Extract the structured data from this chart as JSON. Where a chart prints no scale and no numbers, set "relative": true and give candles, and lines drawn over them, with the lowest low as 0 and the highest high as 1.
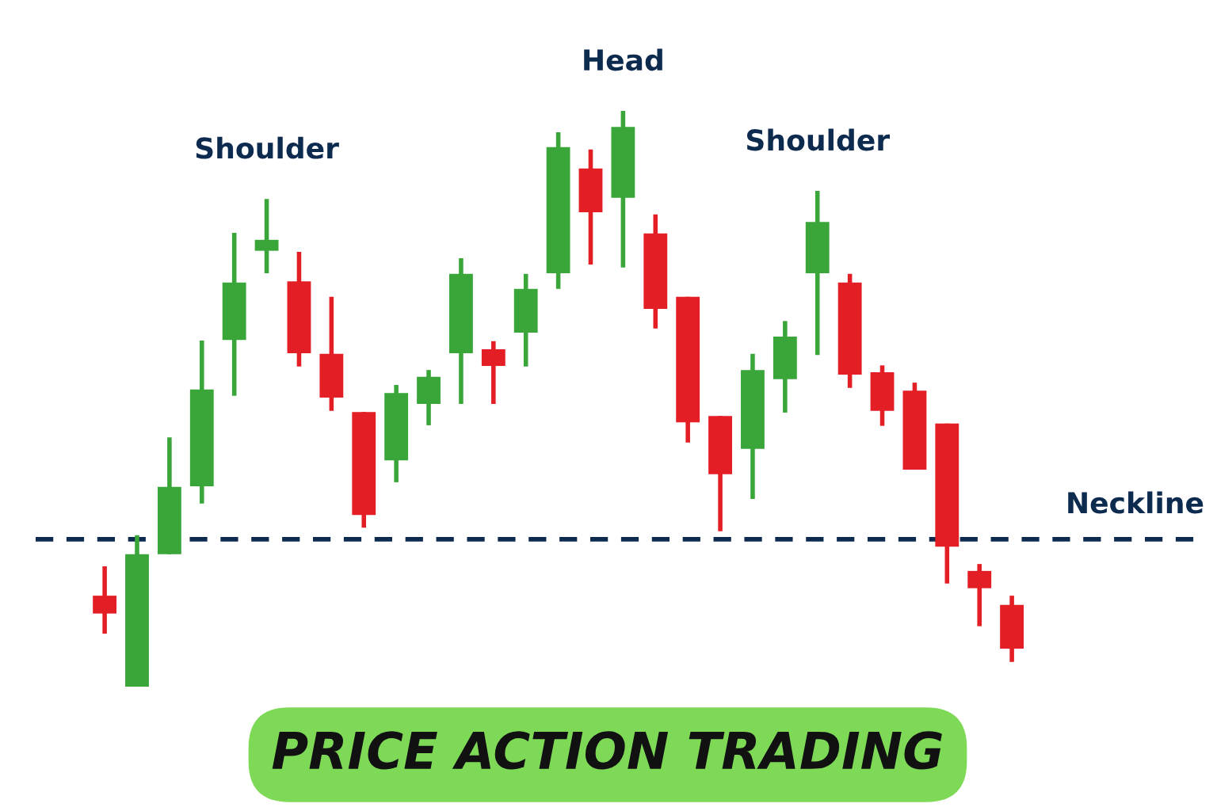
{
  "chart_data": {
    "type": "candlestick",
    "title": "PRICE ACTION TRADING",
    "relative": true,
    "categories": [
      null,
      null,
      null,
      null,
      null,
      null,
      null,
      null,
      null,
      null,
      null,
      null,
      null,
      null,
      null,
      null,
      null,
      null,
      null,
      null,
      null,
      null,
      null,
      null,
      null,
      null,
      null,
      null,
      null
    ],
    "ohlc": [
      [
        0.158,
        0.209,
        0.092,
        0.127
      ],
      [
        0,
        0.263,
        0,
        0.23
      ],
      [
        0.23,
        0.433,
        0.23,
        0.347
      ],
      [
        0.348,
        0.601,
        0.318,
        0.516
      ],
      [
        0.602,
        0.788,
        0.505,
        0.702
      ],
      [
        0.757,
        0.847,
        0.718,
        0.776
      ],
      [
        0.704,
        0.755,
        0.556,
        0.579
      ],
      [
        0.578,
        0.677,
        0.479,
        0.502
      ],
      [
        0.477,
        0.477,
        0.276,
        0.298
      ],
      [
        0.393,
        0.524,
        0.355,
        0.51
      ],
      [
        0.491,
        0.55,
        0.454,
        0.538
      ],
      [
        0.579,
        0.744,
        0.491,
        0.717
      ],
      [
        0.586,
        0.6,
        0.491,
        0.557
      ],
      [
        0.615,
        0.717,
        0.556,
        0.691
      ],
      [
        0.718,
        0.963,
        0.691,
        0.937
      ],
      [
        0.9,
        0.933,
        0.733,
        0.824
      ],
      [
        0.849,
        1,
        0.728,
        0.972
      ],
      [
        0.787,
        0.82,
        0.622,
        0.656
      ],
      [
        0.677,
        0.677,
        0.424,
        0.459
      ],
      [
        0.47,
        0.47,
        0.27,
        0.369
      ],
      [
        0.413,
        0.578,
        0.326,
        0.55
      ],
      [
        0.534,
        0.635,
        0.476,
        0.608
      ],
      [
        0.718,
        0.861,
        0.576,
        0.807
      ],
      [
        0.702,
        0.717,
        0.519,
        0.542
      ],
      [
        0.546,
        0.558,
        0.453,
        0.479
      ],
      [
        0.514,
        0.528,
        0.377,
        0.377
      ],
      [
        0.457,
        0.457,
        0.179,
        0.243
      ],
      [
        0.201,
        0.213,
        0.105,
        0.171
      ],
      [
        0.142,
        0.158,
        0.043,
        0.066
      ]
    ],
    "colors": [
      "#e31e24",
      "#3aa63a",
      "#3aa63a",
      "#3aa63a",
      "#3aa63a",
      "#3aa63a",
      "#e31e24",
      "#e31e24",
      "#e31e24",
      "#3aa63a",
      "#3aa63a",
      "#3aa63a",
      "#e31e24",
      "#3aa63a",
      "#3aa63a",
      "#e31e24",
      "#3aa63a",
      "#e31e24",
      "#e31e24",
      "#e31e24",
      "#3aa63a",
      "#3aa63a",
      "#3aa63a",
      "#e31e24",
      "#e31e24",
      "#e31e24",
      "#e31e24",
      "#e31e24",
      "#e31e24"
    ],
    "ref_lines": [
      {
        "axis": "y",
        "value": 0.256,
        "label": "Neckline",
        "color": "#0d2a4f",
        "line_style": "dashed"
      }
    ],
    "annotations": [
      {
        "text": "Shoulder",
        "y": 0.847
      },
      {
        "text": "Head",
        "y": 1
      },
      {
        "text": "Shoulder",
        "y": 0.861
      }
    ]
  }
}
